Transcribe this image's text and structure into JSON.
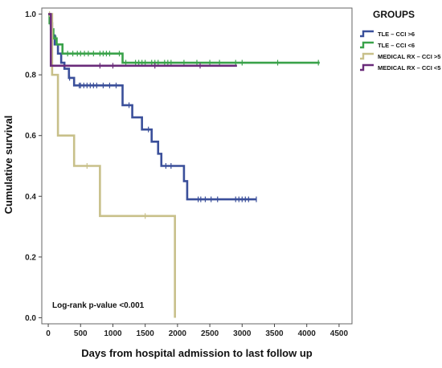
{
  "chart_data": {
    "type": "line",
    "subtype": "kaplan-meier step",
    "title": "",
    "xlabel": "Days from hospital admission to last follow up",
    "ylabel": "Cumulative survival",
    "xlim": [
      -100,
      4700
    ],
    "ylim": [
      -0.02,
      1.02
    ],
    "x_ticks": [
      0,
      500,
      1000,
      1500,
      2000,
      2500,
      3000,
      3500,
      4000,
      4500
    ],
    "y_ticks": [
      0.0,
      0.2,
      0.4,
      0.6,
      0.8,
      1.0
    ],
    "y_tick_labels": [
      "0.0",
      "0.2",
      "0.4",
      "0.6",
      "0.8",
      "1.0"
    ],
    "grid": false,
    "legend": {
      "title": "GROUPS",
      "placement": "right"
    },
    "annotation": "Log-rank p-value <0.001",
    "series": [
      {
        "name": "TLE – CCI >6",
        "color": "#3a4f9a",
        "steps": [
          [
            0,
            1.0
          ],
          [
            30,
            0.97
          ],
          [
            60,
            0.93
          ],
          [
            100,
            0.9
          ],
          [
            150,
            0.87
          ],
          [
            200,
            0.84
          ],
          [
            250,
            0.82
          ],
          [
            320,
            0.79
          ],
          [
            400,
            0.765
          ],
          [
            1150,
            0.7
          ],
          [
            1300,
            0.66
          ],
          [
            1450,
            0.62
          ],
          [
            1600,
            0.58
          ],
          [
            1700,
            0.54
          ],
          [
            1750,
            0.5
          ],
          [
            2100,
            0.45
          ],
          [
            2150,
            0.39
          ]
        ],
        "end": 3220,
        "censor": [
          330,
          480,
          500,
          550,
          600,
          650,
          700,
          750,
          850,
          950,
          1050,
          1250,
          1550,
          1820,
          1900,
          2320,
          2360,
          2430,
          2520,
          2620,
          2900,
          2950,
          3000,
          3050,
          3100,
          3220
        ]
      },
      {
        "name": "TLE – CCI <6",
        "color": "#3aa24a",
        "steps": [
          [
            0,
            1.0
          ],
          [
            20,
            0.97
          ],
          [
            40,
            0.95
          ],
          [
            80,
            0.92
          ],
          [
            130,
            0.9
          ],
          [
            220,
            0.87
          ],
          [
            1150,
            0.84
          ]
        ],
        "end": 4200,
        "censor": [
          30,
          60,
          120,
          300,
          380,
          450,
          500,
          560,
          620,
          700,
          800,
          850,
          900,
          950,
          1100,
          1200,
          1350,
          1400,
          1450,
          1500,
          1600,
          1650,
          1700,
          1800,
          1850,
          1900,
          2100,
          2300,
          2500,
          2650,
          2900,
          3000,
          3550,
          4180
        ]
      },
      {
        "name": "MEDICAL RX – CCI >5",
        "color": "#c8c08a",
        "steps": [
          [
            0,
            1.0
          ],
          [
            60,
            0.8
          ],
          [
            150,
            0.6
          ],
          [
            400,
            0.5
          ],
          [
            800,
            0.335
          ],
          [
            1960,
            0.0
          ]
        ],
        "end": 1960,
        "censor": [
          20,
          600,
          1500
        ]
      },
      {
        "name": "MEDICAL RX – CCI <5",
        "color": "#6a2b7a",
        "steps": [
          [
            0,
            1.0
          ],
          [
            40,
            0.83
          ]
        ],
        "end": 2920,
        "censor": [
          800,
          1000,
          1650,
          2350
        ]
      }
    ]
  }
}
